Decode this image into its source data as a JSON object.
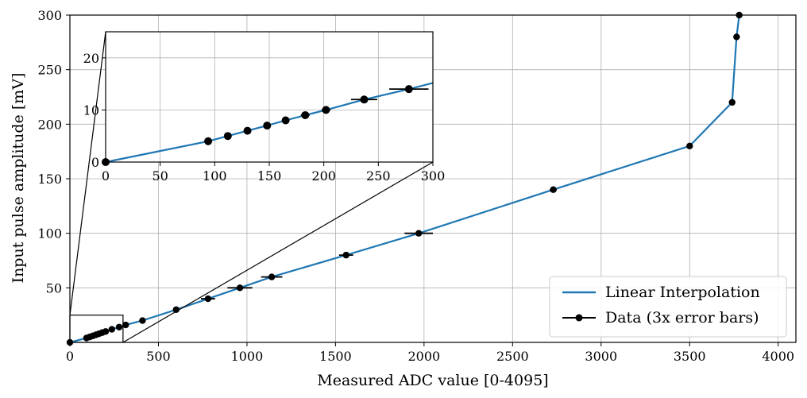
{
  "chart_data": [
    {
      "id": "main",
      "type": "line",
      "xlabel": "Measured ADC value [0-4095]",
      "ylabel": "Input pulse amplitude [mV]",
      "xlim": [
        0,
        4100
      ],
      "ylim": [
        0,
        300
      ],
      "xticks": [
        0,
        500,
        1000,
        1500,
        2000,
        2500,
        3000,
        3500,
        4000
      ],
      "yticks": [
        50,
        100,
        150,
        200,
        250,
        300
      ],
      "grid": true,
      "legend_position": "lower-right",
      "series": [
        {
          "name": "Linear Interpolation",
          "kind": "line",
          "color": "#1f77b4",
          "x": [
            0,
            94,
            112,
            130,
            148,
            165,
            183,
            202,
            237,
            278,
            315,
            410,
            600,
            780,
            960,
            1140,
            1560,
            1970,
            2730,
            3500,
            3740,
            3765,
            3780
          ],
          "y": [
            0,
            4,
            5,
            6,
            7,
            8,
            9,
            10,
            12,
            14,
            16,
            20,
            30,
            40,
            50,
            60,
            80,
            100,
            140,
            180,
            220,
            280,
            300
          ]
        },
        {
          "name": "Data (3x error bars)",
          "kind": "errorbar",
          "color": "#000000",
          "x": [
            0,
            94,
            112,
            130,
            148,
            165,
            183,
            202,
            237,
            278,
            315,
            410,
            600,
            780,
            960,
            1140,
            1560,
            1970,
            2730,
            3500,
            3740,
            3765,
            3780
          ],
          "y": [
            0,
            4,
            5,
            6,
            7,
            8,
            9,
            10,
            12,
            14,
            16,
            20,
            30,
            40,
            50,
            60,
            80,
            100,
            140,
            180,
            220,
            280,
            300
          ],
          "xerr": [
            0,
            2,
            2,
            2,
            3,
            3,
            4,
            4,
            12,
            18,
            10,
            10,
            15,
            40,
            70,
            60,
            40,
            80,
            20,
            10,
            10,
            5,
            5
          ]
        }
      ]
    },
    {
      "id": "inset",
      "type": "line",
      "xlim": [
        0,
        300
      ],
      "ylim": [
        0,
        25
      ],
      "xticks": [
        0,
        50,
        100,
        150,
        200,
        250,
        300
      ],
      "yticks": [
        0,
        10,
        20
      ],
      "grid": true,
      "zoom_region": {
        "x": [
          0,
          300
        ],
        "y": [
          0,
          25
        ]
      }
    }
  ]
}
